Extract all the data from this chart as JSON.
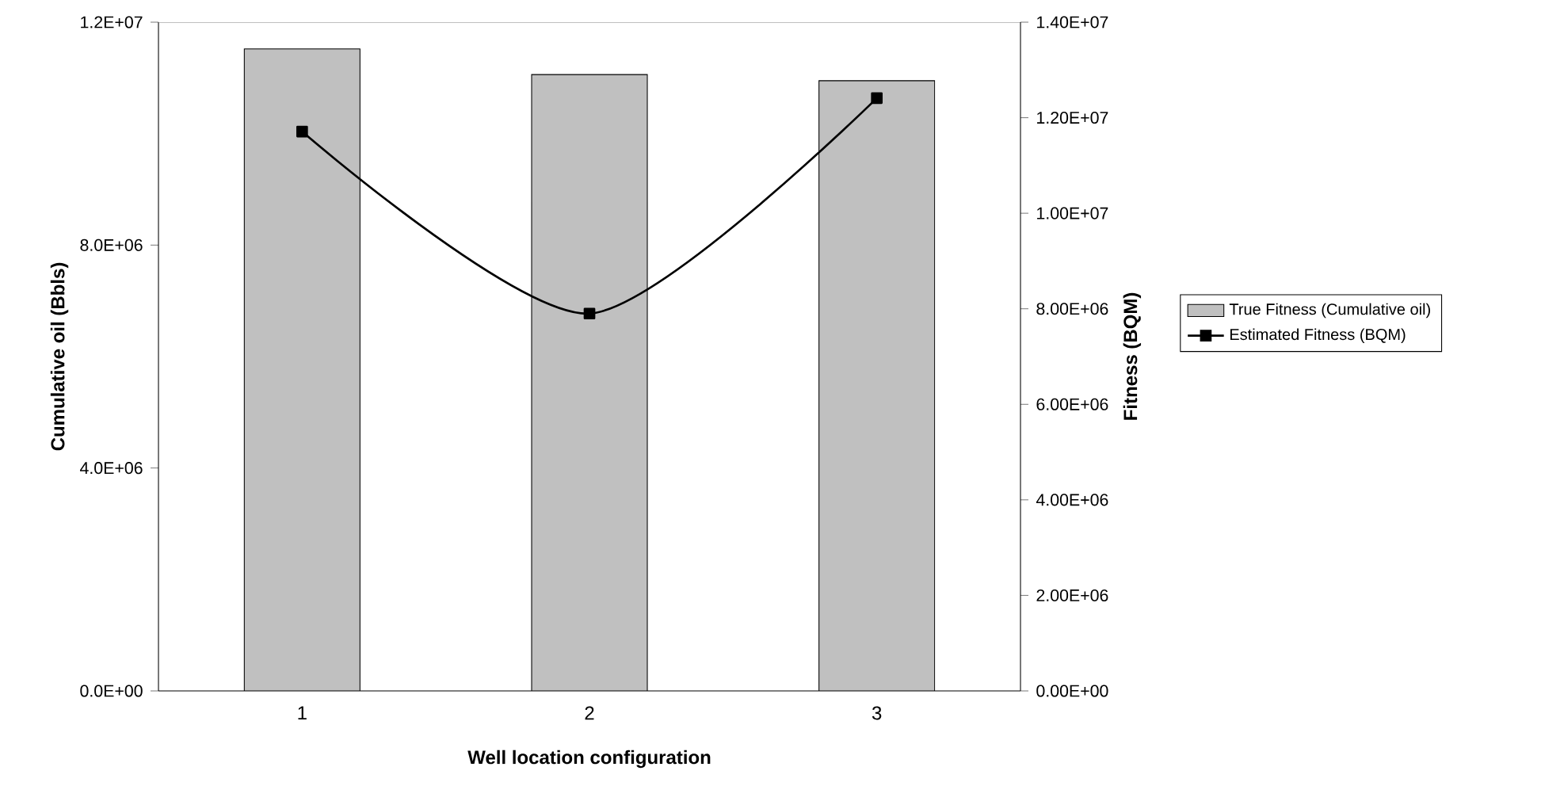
{
  "chart_data": {
    "type": "bar",
    "xlabel": "Well location configuration",
    "ylabel": "Cumulative oil (Bbls)",
    "y2label": "Fitness (BQM)",
    "categories": [
      "1",
      "2",
      "3"
    ],
    "series": [
      {
        "name": "True Fitness (Cumulative oil)",
        "color": "#c0c0c0",
        "values": [
          11520000,
          11060000,
          10950000
        ]
      },
      {
        "name": "Estimated Fitness (BQM)",
        "type": "line",
        "axis": "y2",
        "color": "#000000",
        "marker": "square",
        "line_style": "solid",
        "values": [
          11710000,
          7900000,
          12410000
        ]
      }
    ],
    "ylim": [
      0,
      12000000
    ],
    "yticks": [
      {
        "value": 0,
        "label": "0.0E+00"
      },
      {
        "value": 4000000,
        "label": "4.0E+06"
      },
      {
        "value": 8000000,
        "label": "8.0E+06"
      },
      {
        "value": 12000000,
        "label": "1.2E+07"
      }
    ],
    "y2lim": [
      0,
      14000000
    ],
    "y2ticks": [
      {
        "value": 0,
        "label": "0.00E+00"
      },
      {
        "value": 2000000,
        "label": "2.00E+06"
      },
      {
        "value": 4000000,
        "label": "4.00E+06"
      },
      {
        "value": 6000000,
        "label": "6.00E+06"
      },
      {
        "value": 8000000,
        "label": "8.00E+06"
      },
      {
        "value": 10000000,
        "label": "1.00E+07"
      },
      {
        "value": 12000000,
        "label": "1.20E+07"
      },
      {
        "value": 14000000,
        "label": "1.40E+07"
      }
    ],
    "legend": "right",
    "grid": false
  }
}
